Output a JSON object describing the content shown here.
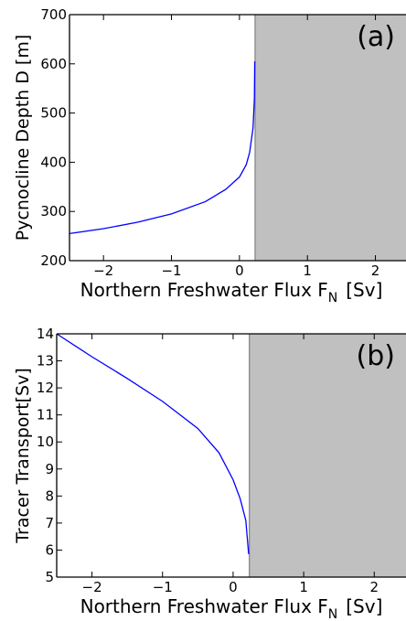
{
  "colors": {
    "line": "#0000ff",
    "shade": "#c0c0c0",
    "shade_edge": "#808080",
    "axis": "#000000"
  },
  "chart_data": [
    {
      "type": "line",
      "panel_label": "(a)",
      "xlabel": "Northern Freshwater Flux F",
      "xlabel_subscript": "N",
      "xlabel_unit": "[Sv]",
      "ylabel": "Pycnocline Depth D [m]",
      "xlim": [
        -2.5,
        2.45
      ],
      "ylim": [
        200,
        700
      ],
      "xticks": [
        -2,
        -1,
        0,
        1,
        2
      ],
      "xtick_labels": [
        "−2",
        "−1",
        "0",
        "1",
        "2"
      ],
      "yticks": [
        200,
        300,
        400,
        500,
        600,
        700
      ],
      "ytick_labels": [
        "200",
        "300",
        "400",
        "500",
        "600",
        "700"
      ],
      "shaded_region_x": [
        0.23,
        2.45
      ],
      "grid": false,
      "series": [
        {
          "x": [
            -2.5,
            -2.0,
            -1.5,
            -1.0,
            -0.5,
            -0.2,
            0.0,
            0.1,
            0.15,
            0.2,
            0.22,
            0.225
          ],
          "y": [
            255,
            265,
            278,
            295,
            320,
            345,
            370,
            395,
            420,
            470,
            530,
            605
          ]
        }
      ]
    },
    {
      "type": "line",
      "panel_label": "(b)",
      "xlabel": "Northern Freshwater Flux F",
      "xlabel_subscript": "N",
      "xlabel_unit": "[Sv]",
      "ylabel": "Tracer Transport[Sv]",
      "xlim": [
        -2.5,
        2.45
      ],
      "ylim": [
        5,
        14
      ],
      "xticks": [
        -2,
        -1,
        0,
        1,
        2
      ],
      "xtick_labels": [
        "−2",
        "−1",
        "0",
        "1",
        "2"
      ],
      "yticks": [
        5,
        6,
        7,
        8,
        9,
        10,
        11,
        12,
        13,
        14
      ],
      "ytick_labels": [
        "5",
        "6",
        "7",
        "8",
        "9",
        "10",
        "11",
        "12",
        "13",
        "14"
      ],
      "shaded_region_x": [
        0.23,
        2.45
      ],
      "grid": false,
      "series": [
        {
          "x": [
            -2.5,
            -2.0,
            -1.5,
            -1.0,
            -0.5,
            -0.2,
            0.0,
            0.1,
            0.18,
            0.22
          ],
          "y": [
            14.0,
            13.15,
            12.35,
            11.5,
            10.5,
            9.6,
            8.6,
            7.9,
            7.1,
            5.85
          ]
        }
      ]
    }
  ]
}
